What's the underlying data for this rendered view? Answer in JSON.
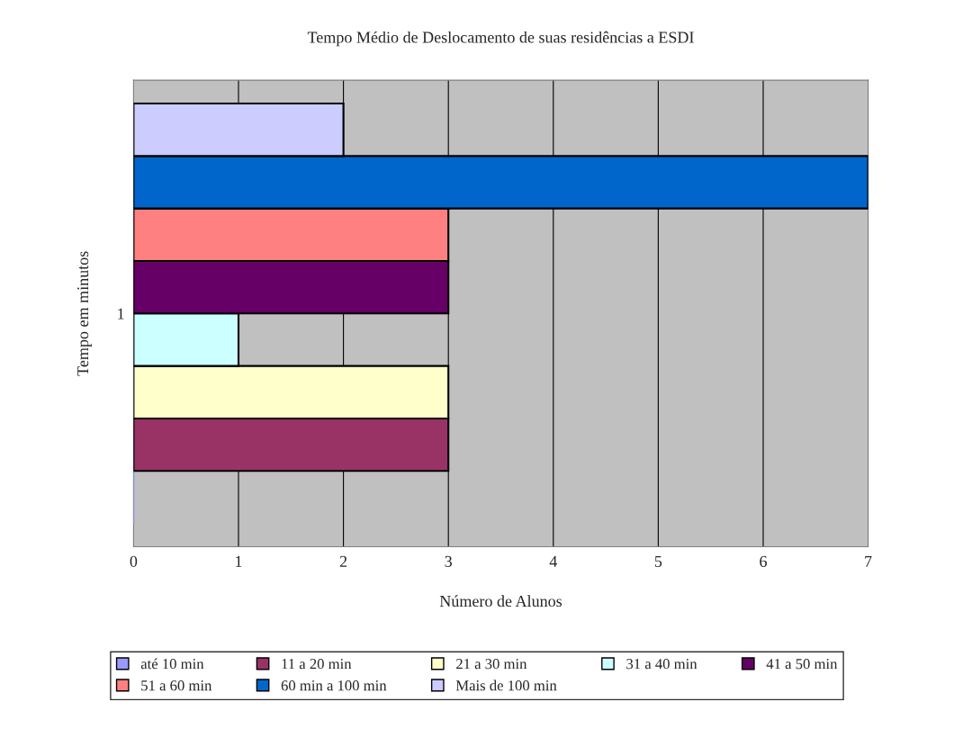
{
  "chart_data": {
    "type": "bar",
    "orientation": "horizontal",
    "title": "Tempo Médio de Deslocamento de suas residências a ESDI",
    "xlabel": "Número de Alunos",
    "ylabel": "Tempo em minutos",
    "categories": [
      "1"
    ],
    "series": [
      {
        "name": "até 10 min",
        "color": "#9999ff",
        "values": [
          0
        ]
      },
      {
        "name": "11 a 20 min",
        "color": "#993366",
        "values": [
          3
        ]
      },
      {
        "name": "21 a 30 min",
        "color": "#ffffcc",
        "values": [
          3
        ]
      },
      {
        "name": "31 a 40 min",
        "color": "#ccffff",
        "values": [
          1
        ]
      },
      {
        "name": "41 a 50 min",
        "color": "#660066",
        "values": [
          3
        ]
      },
      {
        "name": "51 a 60 min",
        "color": "#ff8080",
        "values": [
          3
        ]
      },
      {
        "name": "60 min a 100 min",
        "color": "#0066cc",
        "values": [
          7
        ]
      },
      {
        "name": "Mais de 100 min",
        "color": "#ccccff",
        "values": [
          2
        ]
      }
    ],
    "xlim": [
      0,
      7
    ],
    "xticks": [
      0,
      1,
      2,
      3,
      4,
      5,
      6,
      7
    ],
    "grid": "x",
    "legend": "bottom"
  }
}
